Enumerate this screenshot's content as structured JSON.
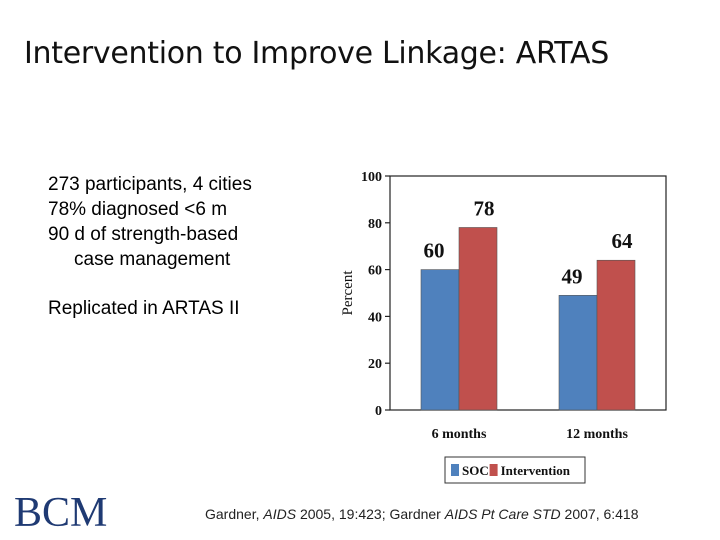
{
  "slide": {
    "title": "Intervention to Improve Linkage: ARTAS",
    "bullets": [
      "273 participants, 4 cities",
      "78% diagnosed <6 m",
      "90 d of strength-based",
      "case management",
      "Replicated in ARTAS II"
    ],
    "logo_text": "BCM",
    "citation": {
      "part1": "Gardner, ",
      "journal1": "AIDS",
      "part2": " 2005, 19:423; Gardner ",
      "journal2": "AIDS Pt Care STD",
      "part3": " 2007, 6:418"
    }
  },
  "chart_data": {
    "type": "bar",
    "categories": [
      "6 months",
      "12 months"
    ],
    "series": [
      {
        "name": "SOC",
        "values": [
          60,
          49
        ],
        "color": "#4f81bd"
      },
      {
        "name": "Intervention",
        "values": [
          78,
          64
        ],
        "color": "#c0504d"
      }
    ],
    "ylabel": "Percent",
    "ylim": [
      0,
      100
    ],
    "yticks": [
      0,
      20,
      40,
      60,
      80,
      100
    ],
    "legend_position": "bottom",
    "data_labels": true
  }
}
